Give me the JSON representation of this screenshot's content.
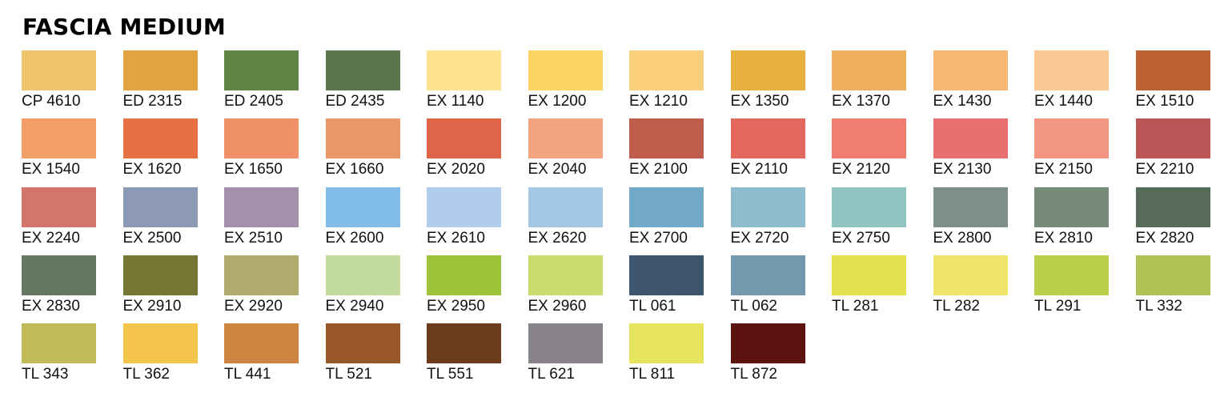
{
  "title": "FASCIA MEDIUM",
  "swatches": [
    {
      "code": "CP 4610",
      "color": "#EDC46A"
    },
    {
      "code": "ED 2315",
      "color": "#E2A23F"
    },
    {
      "code": "ED 2405",
      "color": "#5E8546"
    },
    {
      "code": "ED 2435",
      "color": "#5A774C"
    },
    {
      "code": "EX 1140",
      "color": "#FEE18F"
    },
    {
      "code": "EX 1200",
      "color": "#FDD462"
    },
    {
      "code": "EX 1210",
      "color": "#FBD07D"
    },
    {
      "code": "EX 1350",
      "color": "#E7AF40"
    },
    {
      "code": "EX 1370",
      "color": "#EFAF5C"
    },
    {
      "code": "EX 1430",
      "color": "#F7B775"
    },
    {
      "code": "EX 1440",
      "color": "#F9C791"
    },
    {
      "code": "EX 1510",
      "color": "#BE6031"
    },
    {
      "code": "EX 1540",
      "color": "#F49E69"
    },
    {
      "code": "EX 1620",
      "color": "#E57142"
    },
    {
      "code": "EX 1650",
      "color": "#F09169"
    },
    {
      "code": "EX 1660",
      "color": "#E99766"
    },
    {
      "code": "EX 2020",
      "color": "#E06548"
    },
    {
      "code": "EX 2040",
      "color": "#F3A380"
    },
    {
      "code": "EX 2100",
      "color": "#C05C4C"
    },
    {
      "code": "EX 2110",
      "color": "#E3695E"
    },
    {
      "code": "EX 2120",
      "color": "#EF7E70"
    },
    {
      "code": "EX 2130",
      "color": "#EA6F6F"
    },
    {
      "code": "EX 2150",
      "color": "#F29581"
    },
    {
      "code": "EX 2210",
      "color": "#BC5656"
    },
    {
      "code": "EX 2240",
      "color": "#D4756B"
    },
    {
      "code": "EX 2500",
      "color": "#8C9AB5"
    },
    {
      "code": "EX 2510",
      "color": "#A490AB"
    },
    {
      "code": "EX 2600",
      "color": "#82BCE8"
    },
    {
      "code": "EX 2610",
      "color": "#B1CDEE"
    },
    {
      "code": "EX 2620",
      "color": "#A3C7E4"
    },
    {
      "code": "EX 2700",
      "color": "#72A9C6"
    },
    {
      "code": "EX 2720",
      "color": "#8FBCCC"
    },
    {
      "code": "EX 2750",
      "color": "#90C3C0"
    },
    {
      "code": "EX 2800",
      "color": "#7E8E88"
    },
    {
      "code": "EX 2810",
      "color": "#778B79"
    },
    {
      "code": "EX 2820",
      "color": "#566B58"
    },
    {
      "code": "EX 2830",
      "color": "#667862"
    },
    {
      "code": "EX 2910",
      "color": "#777734"
    },
    {
      "code": "EX 2920",
      "color": "#B0AA6D"
    },
    {
      "code": "EX 2940",
      "color": "#C2DA9E"
    },
    {
      "code": "EX 2950",
      "color": "#9BC43B"
    },
    {
      "code": "EX 2960",
      "color": "#C9DB6B"
    },
    {
      "code": "TL 061",
      "color": "#3E556E"
    },
    {
      "code": "TL 062",
      "color": "#7499AF"
    },
    {
      "code": "TL 281",
      "color": "#E5E04E"
    },
    {
      "code": "TL 282",
      "color": "#EEE467"
    },
    {
      "code": "TL 291",
      "color": "#BBD04A"
    },
    {
      "code": "TL 332",
      "color": "#AFC354"
    },
    {
      "code": "TL 343",
      "color": "#C1BC59"
    },
    {
      "code": "TL 362",
      "color": "#F3C64B"
    },
    {
      "code": "TL 441",
      "color": "#CE8540"
    },
    {
      "code": "TL 521",
      "color": "#98582A"
    },
    {
      "code": "TL 551",
      "color": "#6C3A1C"
    },
    {
      "code": "TL 621",
      "color": "#88838B"
    },
    {
      "code": "TL 811",
      "color": "#E5E45C"
    },
    {
      "code": "TL 872",
      "color": "#5C1310"
    }
  ]
}
